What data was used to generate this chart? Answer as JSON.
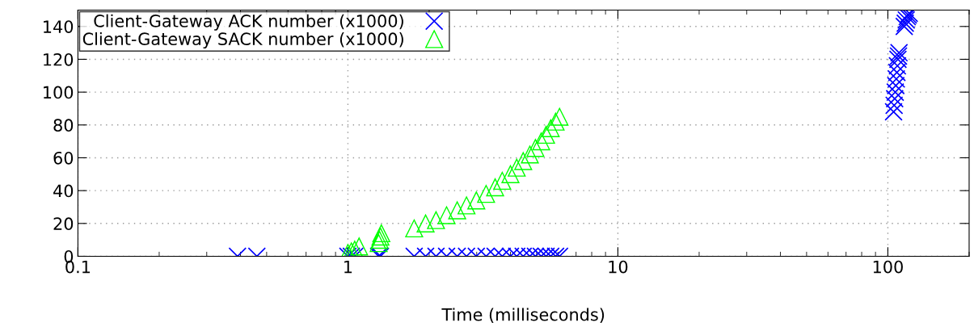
{
  "chart_data": {
    "type": "scatter",
    "xlabel": "Time (milliseconds)",
    "log": "x",
    "xlim": [
      0.1,
      200
    ],
    "xticks": [
      0.1,
      1,
      10,
      100
    ],
    "ylim": [
      0,
      150
    ],
    "yticks": [
      0,
      20,
      40,
      60,
      80,
      100,
      120,
      140
    ],
    "grid": true,
    "legend": "top left",
    "series": [
      {
        "name": "Client-Gateway ACK number (x1000)",
        "color": "#0000ff",
        "marker": "cross",
        "x": [
          0.39,
          0.46,
          1.0,
          1.03,
          1.06,
          1.3,
          1.32,
          1.76,
          1.94,
          2.12,
          2.32,
          2.54,
          2.75,
          2.99,
          3.25,
          3.51,
          3.73,
          4.0,
          4.22,
          4.46,
          4.72,
          4.95,
          5.2,
          5.42,
          5.64,
          5.88,
          6.08,
          105,
          105.5,
          106,
          106.5,
          107,
          107.5,
          108,
          108.5,
          109,
          109.5,
          110,
          115,
          116,
          117,
          118,
          119,
          120
        ],
        "values": [
          0,
          0,
          0,
          0,
          0,
          0,
          0,
          0,
          0,
          0,
          0,
          0,
          0,
          0,
          0,
          0,
          0,
          0,
          0,
          0,
          0,
          0,
          0,
          0,
          0,
          0,
          0,
          88,
          92,
          96,
          100,
          104,
          108,
          112,
          116,
          120,
          122,
          124,
          140,
          142,
          144,
          146,
          147,
          148
        ]
      },
      {
        "name": "Client-Gateway SACK number (x1000)",
        "color": "#00ff00",
        "marker": "triangle",
        "x": [
          1.0,
          1.03,
          1.06,
          1.1,
          1.3,
          1.31,
          1.32,
          1.33,
          1.76,
          1.94,
          2.12,
          2.32,
          2.54,
          2.75,
          2.99,
          3.25,
          3.51,
          3.73,
          4.0,
          4.22,
          4.46,
          4.72,
          4.95,
          5.2,
          5.42,
          5.64,
          5.88,
          6.08
        ],
        "values": [
          2,
          3,
          4,
          6,
          8,
          10,
          12,
          14,
          17,
          20,
          22,
          25,
          28,
          31,
          34,
          38,
          42,
          46,
          50,
          54,
          58,
          62,
          66,
          70,
          74,
          78,
          82,
          85
        ]
      }
    ]
  }
}
